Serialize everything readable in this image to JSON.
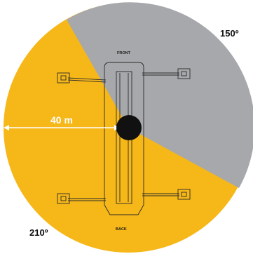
{
  "diagram": {
    "angle_top_right": "150º",
    "angle_bottom_left": "210º",
    "radius_label": "40 m",
    "front_label": "FRONT",
    "back_label": "BACK"
  },
  "colors": {
    "working_zone": "#f6b719",
    "restricted_zone": "#a7a8ab",
    "outline": "#2b2b2b",
    "pivot": "#111111",
    "radius_arrow": "#ffffff"
  }
}
